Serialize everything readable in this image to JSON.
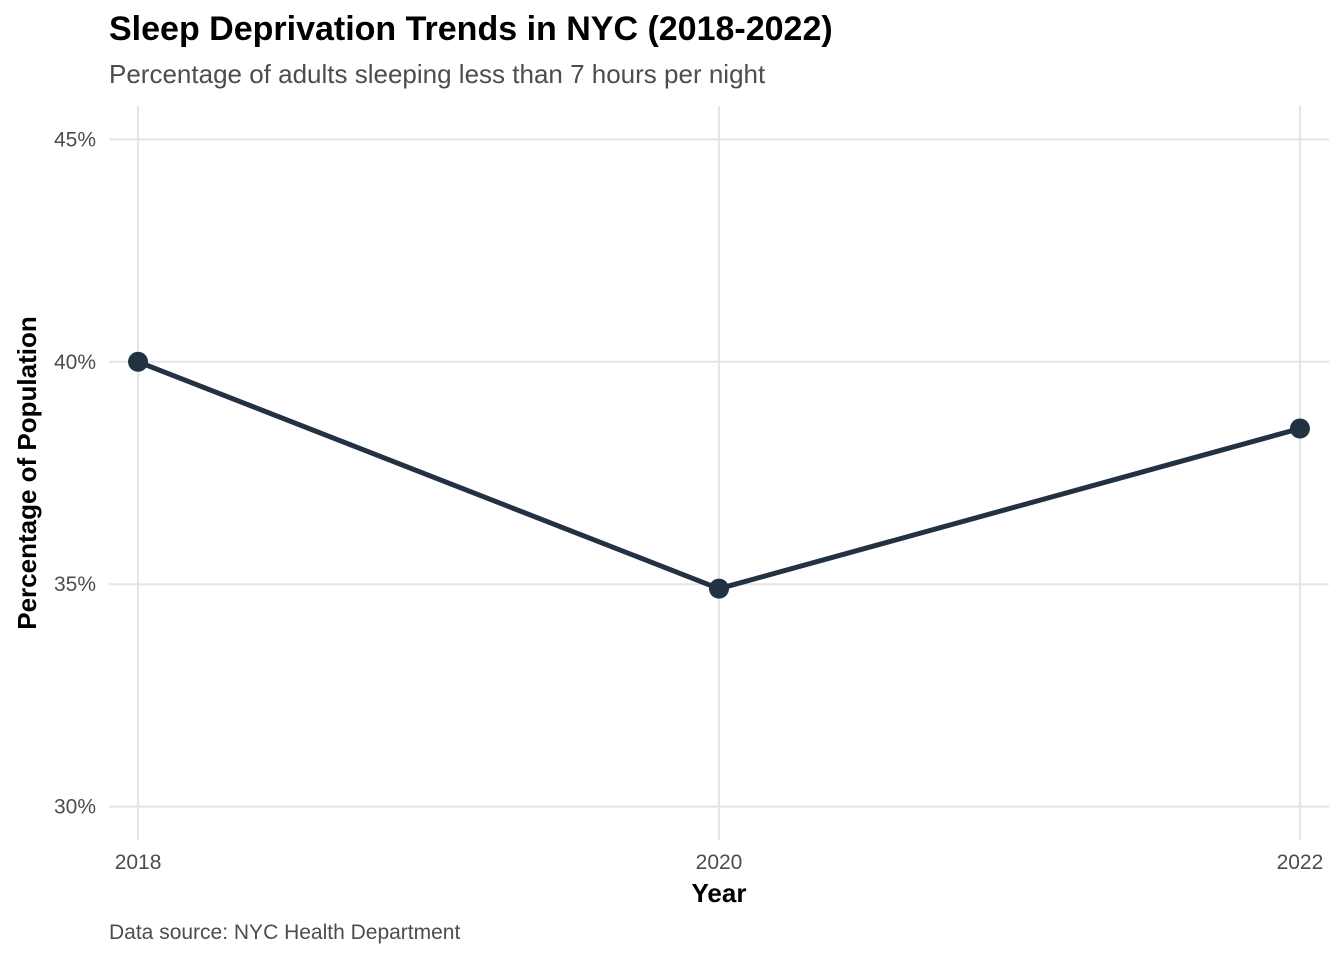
{
  "chart_data": {
    "type": "line",
    "title": "Sleep Deprivation Trends in NYC (2018-2022)",
    "subtitle": "Percentage of adults sleeping less than 7 hours per night",
    "caption": "Data source: NYC Health Department",
    "xlabel": "Year",
    "ylabel": "Percentage of Population",
    "x": [
      2018,
      2020,
      2022
    ],
    "x_tick_labels": [
      "2018",
      "2020",
      "2022"
    ],
    "series": [
      {
        "values": [
          40.0,
          34.9,
          38.5
        ]
      }
    ],
    "y_ticks": [
      30,
      35,
      40,
      45
    ],
    "y_tick_labels": [
      "30%",
      "35%",
      "40%",
      "45%"
    ],
    "ylim": [
      29.25,
      45.75
    ],
    "xlim": [
      2017.9,
      2022.1
    ],
    "grid": true,
    "legend": "none",
    "colors": {
      "line": "#233243",
      "grid": "#e5e5e5",
      "tick_text": "#4d4d4d"
    }
  }
}
